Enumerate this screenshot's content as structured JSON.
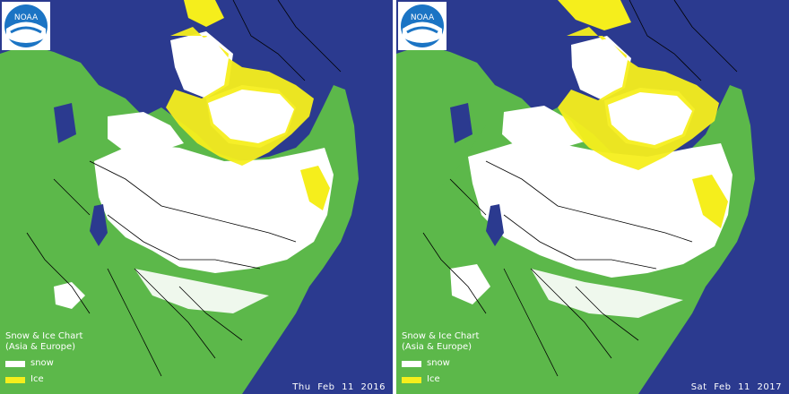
{
  "panels": [
    {
      "logo_text": "NOAA",
      "legend": {
        "title_line1": "Snow & Ice Chart",
        "title_line2": "(Asia & Europe)",
        "items": [
          {
            "label": "snow",
            "color": "#ffffff"
          },
          {
            "label": "Ice",
            "color": "#f5ee1c"
          }
        ]
      },
      "date": "Thu Feb 11   2016"
    },
    {
      "logo_text": "NOAA",
      "legend": {
        "title_line1": "Snow & Ice Chart",
        "title_line2": "(Asia & Europe)",
        "items": [
          {
            "label": "snow",
            "color": "#ffffff"
          },
          {
            "label": "Ice",
            "color": "#f5ee1c"
          }
        ]
      },
      "date": "Sat Feb 11   2017"
    }
  ],
  "colors": {
    "ocean": "#2b3a8f",
    "land": "#5cb84a",
    "snow": "#ffffff",
    "ice": "#f5ee1c",
    "border": "#000000"
  }
}
